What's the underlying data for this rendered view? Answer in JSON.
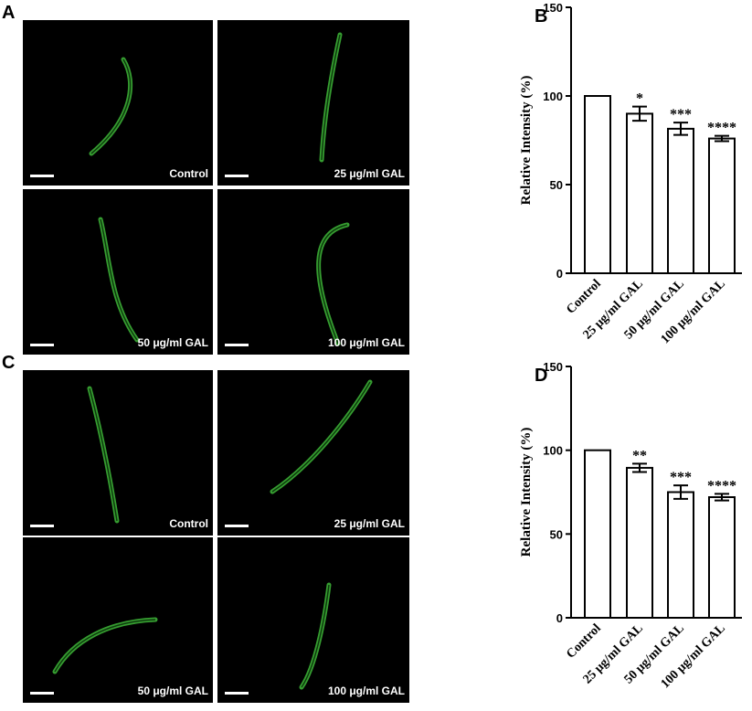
{
  "chart_data": [
    {
      "type": "bar",
      "label": "B",
      "ylabel": "Relative Intensity (%)",
      "categories": [
        "Control",
        "25 μg/ml GAL",
        "50 μg/ml GAL",
        "100 μg/ml GAL"
      ],
      "values": [
        100,
        90,
        81.5,
        76
      ],
      "errors": [
        0,
        4,
        3.5,
        1.5
      ],
      "annotations": [
        null,
        "*",
        "***",
        "****"
      ],
      "color": "#ffffff",
      "ylim": [
        0,
        150
      ],
      "yticks": [
        0,
        50,
        100,
        150
      ]
    },
    {
      "type": "bar",
      "label": "D",
      "ylabel": "Relative Intensity (%)",
      "categories": [
        "Control",
        "25 μg/ml GAL",
        "50 μg/ml GAL",
        "100 μg/ml GAL"
      ],
      "values": [
        100,
        89.5,
        75,
        72
      ],
      "errors": [
        0,
        2.5,
        4,
        2
      ],
      "annotations": [
        null,
        "**",
        "***",
        "****"
      ],
      "color": "#ffffff",
      "ylim": [
        0,
        150
      ],
      "yticks": [
        0,
        50,
        100,
        150
      ]
    }
  ],
  "image_panels": [
    {
      "label": "A",
      "captions": [
        "Control",
        "25 μg/ml GAL",
        "50 μg/ml GAL",
        "100 μg/ml GAL"
      ]
    },
    {
      "label": "C",
      "captions": [
        "Control",
        "25 μg/ml GAL",
        "50 μg/ml GAL",
        "100 μg/ml GAL"
      ]
    }
  ]
}
